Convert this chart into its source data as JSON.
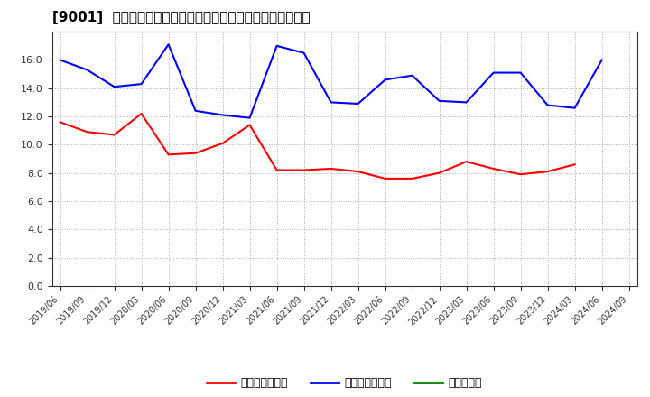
{
  "title": "[9001]  売上債権回転率、買入債務回転率、在庫回転率の推移",
  "x_labels": [
    "2019/06",
    "2019/09",
    "2019/12",
    "2020/03",
    "2020/06",
    "2020/09",
    "2020/12",
    "2021/03",
    "2021/06",
    "2021/09",
    "2021/12",
    "2022/03",
    "2022/06",
    "2022/09",
    "2022/12",
    "2023/03",
    "2023/06",
    "2023/09",
    "2023/12",
    "2024/03",
    "2024/06",
    "2024/09"
  ],
  "series": [
    {
      "name": "売上債権回転率",
      "color": "#ff0000",
      "values": [
        11.6,
        10.9,
        10.7,
        12.2,
        9.3,
        9.4,
        10.1,
        11.4,
        8.2,
        8.2,
        8.3,
        8.1,
        7.6,
        7.6,
        8.0,
        8.8,
        8.3,
        7.9,
        8.1,
        8.6,
        null,
        null
      ]
    },
    {
      "name": "買入債務回転率",
      "color": "#0000ff",
      "values": [
        16.0,
        15.3,
        14.1,
        14.3,
        17.1,
        12.4,
        12.1,
        11.9,
        17.0,
        16.5,
        13.0,
        12.9,
        14.6,
        14.9,
        13.1,
        13.0,
        15.1,
        15.1,
        12.8,
        12.6,
        16.0,
        null
      ]
    },
    {
      "name": "在庫回転率",
      "color": "#008000",
      "values": [
        null,
        null,
        null,
        null,
        null,
        null,
        null,
        null,
        null,
        null,
        null,
        null,
        null,
        null,
        null,
        null,
        null,
        null,
        null,
        null,
        null,
        null
      ]
    }
  ],
  "ylim": [
    0.0,
    18.0
  ],
  "yticks": [
    0.0,
    2.0,
    4.0,
    6.0,
    8.0,
    10.0,
    12.0,
    14.0,
    16.0
  ],
  "background_color": "#ffffff",
  "grid_color": "#aaaaaa",
  "title_fontsize": 11,
  "tick_fontsize": 8,
  "legend_fontsize": 9
}
